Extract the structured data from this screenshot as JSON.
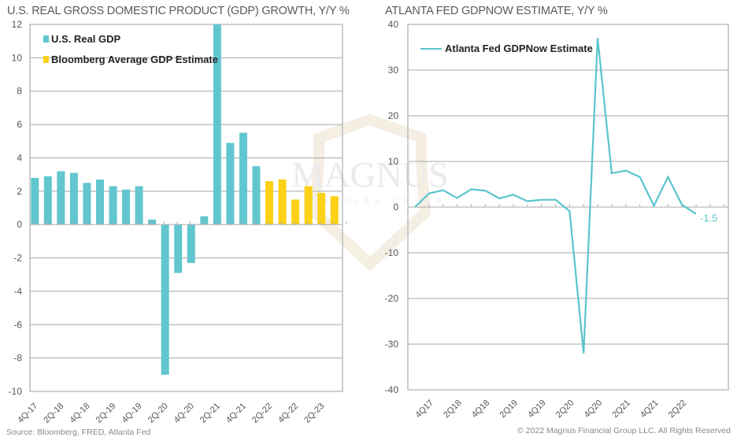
{
  "chart_data": [
    {
      "type": "bar",
      "title": "U.S. REAL GROSS DOMESTIC PRODUCT (GDP) GROWTH, Y/Y %",
      "xlabel": "",
      "ylabel": "",
      "ylim": [
        -10,
        12
      ],
      "yticks": [
        12,
        10,
        8,
        6,
        4,
        2,
        0,
        -2,
        -4,
        -6,
        -8,
        -10
      ],
      "grid": true,
      "legend_position": "top-left",
      "categories": [
        "4Q-17",
        "1Q-18",
        "2Q-18",
        "3Q-18",
        "4Q-18",
        "1Q-19",
        "2Q-19",
        "3Q-19",
        "4Q-19",
        "1Q-20",
        "2Q-20",
        "3Q-20",
        "4Q-20",
        "1Q-21",
        "2Q-21",
        "3Q-21",
        "4Q-21",
        "1Q-22",
        "2Q-22",
        "3Q-22",
        "4Q-22",
        "1Q-23",
        "2Q-23",
        "3Q-23"
      ],
      "xtick_labels": [
        "4Q-17",
        "2Q-18",
        "4Q-18",
        "2Q-19",
        "4Q-19",
        "2Q-20",
        "4Q-20",
        "2Q-21",
        "4Q-21",
        "2Q-22",
        "4Q-22",
        "2Q-23"
      ],
      "series": [
        {
          "name": "U.S. Real GDP",
          "color": "#62c6d0",
          "values": [
            2.8,
            2.9,
            3.2,
            3.1,
            2.5,
            2.7,
            2.3,
            2.1,
            2.3,
            0.3,
            -9.0,
            -2.9,
            -2.3,
            0.5,
            12.2,
            4.9,
            5.5,
            3.5,
            null,
            null,
            null,
            null,
            null,
            null
          ]
        },
        {
          "name": "Bloomberg Average GDP Estimate",
          "color": "#fcd116",
          "values": [
            null,
            null,
            null,
            null,
            null,
            null,
            null,
            null,
            null,
            null,
            null,
            null,
            null,
            null,
            null,
            null,
            null,
            null,
            2.6,
            2.7,
            1.5,
            2.3,
            1.9,
            1.7
          ]
        }
      ]
    },
    {
      "type": "line",
      "title": "ATLANTA FED GDPNOW ESTIMATE, Y/Y %",
      "xlabel": "",
      "ylabel": "",
      "ylim": [
        -40,
        40
      ],
      "yticks": [
        40,
        30,
        20,
        10,
        0,
        -10,
        -20,
        -30,
        -40
      ],
      "grid": true,
      "legend_position": "top-left",
      "x": [
        "3Q17",
        "4Q17",
        "1Q18",
        "2Q18",
        "3Q18",
        "4Q18",
        "1Q19",
        "2Q19",
        "3Q19",
        "4Q19",
        "1Q20",
        "2Q20",
        "3Q20",
        "4Q20",
        "1Q21",
        "2Q21",
        "3Q21",
        "4Q21",
        "1Q22",
        "2Q22",
        "3Q22"
      ],
      "xtick_labels": [
        "4Q17",
        "2Q18",
        "4Q18",
        "2Q19",
        "4Q19",
        "2Q20",
        "4Q20",
        "2Q21",
        "4Q21",
        "2Q22"
      ],
      "series": [
        {
          "name": "Atlanta Fed GDPNow Estimate",
          "color": "#5bc4cc",
          "values": [
            0.0,
            3.0,
            3.7,
            2.0,
            3.9,
            3.6,
            1.9,
            2.7,
            1.3,
            1.6,
            1.6,
            -0.9,
            -32.0,
            37.0,
            7.4,
            8.0,
            6.6,
            0.3,
            6.6,
            0.5,
            -1.5
          ]
        }
      ],
      "annotations": [
        {
          "text": "-1.5",
          "x": "3Q22",
          "y": -1.5
        }
      ]
    }
  ],
  "footer": {
    "source": "Source: Bloomberg, FRED, Atlanta Fed",
    "copyright": "© 2022 Magnus Financial Group LLC. All Rights Reserved"
  },
  "watermark": {
    "name": "MAGNUS",
    "subtitle": "FINANCIAL GROUP"
  }
}
